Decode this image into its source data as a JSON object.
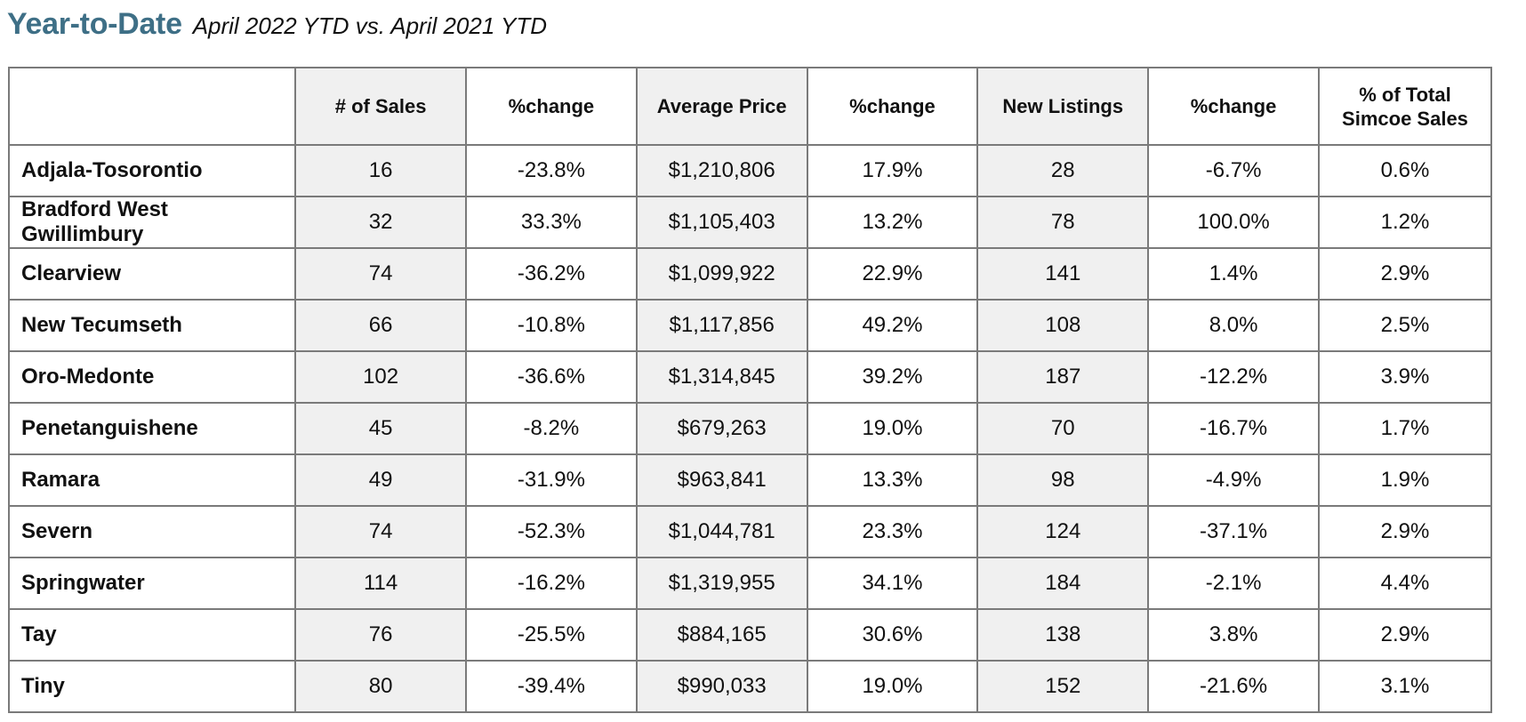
{
  "header": {
    "title": "Year-to-Date",
    "subtitle": "April 2022 YTD vs. April 2021 YTD"
  },
  "table": {
    "columns": [
      "",
      "# of Sales",
      "%change",
      "Average Price",
      "%change",
      "New Listings",
      "%change",
      "% of Total\nSimcoe Sales"
    ],
    "rows": [
      [
        "Adjala-Tosorontio",
        "16",
        "-23.8%",
        "$1,210,806",
        "17.9%",
        "28",
        "-6.7%",
        "0.6%"
      ],
      [
        "Bradford West\nGwillimbury",
        "32",
        "33.3%",
        "$1,105,403",
        "13.2%",
        "78",
        "100.0%",
        "1.2%"
      ],
      [
        "Clearview",
        "74",
        "-36.2%",
        "$1,099,922",
        "22.9%",
        "141",
        "1.4%",
        "2.9%"
      ],
      [
        "New Tecumseth",
        "66",
        "-10.8%",
        "$1,117,856",
        "49.2%",
        "108",
        "8.0%",
        "2.5%"
      ],
      [
        "Oro-Medonte",
        "102",
        "-36.6%",
        "$1,314,845",
        "39.2%",
        "187",
        "-12.2%",
        "3.9%"
      ],
      [
        "Penetanguishene",
        "45",
        "-8.2%",
        "$679,263",
        "19.0%",
        "70",
        "-16.7%",
        "1.7%"
      ],
      [
        "Ramara",
        "49",
        "-31.9%",
        "$963,841",
        "13.3%",
        "98",
        "-4.9%",
        "1.9%"
      ],
      [
        "Severn",
        "74",
        "-52.3%",
        "$1,044,781",
        "23.3%",
        "124",
        "-37.1%",
        "2.9%"
      ],
      [
        "Springwater",
        "114",
        "-16.2%",
        "$1,319,955",
        "34.1%",
        "184",
        "-2.1%",
        "4.4%"
      ],
      [
        "Tay",
        "76",
        "-25.5%",
        "$884,165",
        "30.6%",
        "138",
        "3.8%",
        "2.9%"
      ],
      [
        "Tiny",
        "80",
        "-39.4%",
        "$990,033",
        "19.0%",
        "152",
        "-21.6%",
        "3.1%"
      ]
    ]
  },
  "colors": {
    "title": "#3e6f86",
    "shaded_column": "#f0f0f0",
    "border": "#7a7a7a"
  }
}
